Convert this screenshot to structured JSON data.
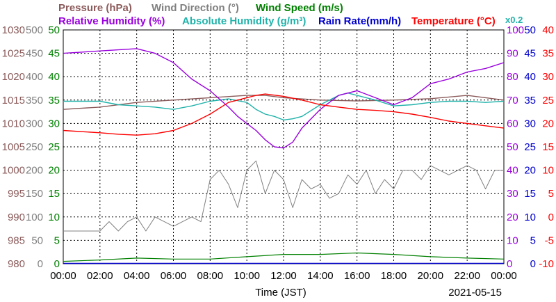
{
  "chart_data": {
    "type": "line",
    "date": "2021-05-15",
    "xlabel": "Time (JST)",
    "x_ticks": [
      "00:00",
      "02:00",
      "04:00",
      "06:00",
      "08:00",
      "10:00",
      "12:00",
      "14:00",
      "16:00",
      "18:00",
      "20:00",
      "22:00",
      "00:00"
    ],
    "grid": true,
    "legend": [
      {
        "label": "Pressure (hPa)",
        "color": "#8b5a5a"
      },
      {
        "label": "Wind Direction (°)",
        "color": "#808080"
      },
      {
        "label": "Wind Speed (m/s)",
        "color": "#008000"
      },
      {
        "label": "Relative Humidity (%)",
        "color": "#9900dd"
      },
      {
        "label": "Absolute Humidity (g/m³)",
        "color": "#20b2aa"
      },
      {
        "label": "Rain Rate(mm/h)",
        "color": "#0000cc"
      },
      {
        "label": "Temperature (°C)",
        "color": "#ff0000"
      }
    ],
    "rh_scale_note": "x0.2",
    "axes": {
      "pressure": {
        "color": "#8b5a5a",
        "min": 980,
        "max": 1030,
        "ticks": [
          "1030",
          "1025",
          "1020",
          "1015",
          "1010",
          "1005",
          "1000",
          "995",
          "990",
          "985",
          "980"
        ]
      },
      "wind_direction": {
        "color": "#808080",
        "min": 0,
        "max": 500,
        "ticks": [
          "500",
          "450",
          "400",
          "350",
          "300",
          "250",
          "200",
          "150",
          "100",
          "50",
          "0"
        ]
      },
      "wind_speed": {
        "color": "#008000",
        "min": 0,
        "max": 50,
        "ticks": [
          "50",
          "45",
          "40",
          "35",
          "30",
          "25",
          "20",
          "15",
          "10",
          "5",
          "0"
        ]
      },
      "humidity": {
        "color": "#9900dd",
        "min": 0,
        "max": 100,
        "ticks": [
          "100",
          "90",
          "80",
          "70",
          "60",
          "50",
          "40",
          "30",
          "20",
          "10",
          "0"
        ]
      },
      "rain_rate": {
        "color": "#0000cc",
        "min": 0,
        "max": 50,
        "ticks": [
          "50",
          "45",
          "40",
          "35",
          "30",
          "25",
          "20",
          "15",
          "10",
          "5",
          "0"
        ]
      },
      "temperature": {
        "color": "#ff0000",
        "min": -10,
        "max": 40,
        "ticks": [
          "40",
          "35",
          "30",
          "25",
          "20",
          "15",
          "10",
          "5",
          "0",
          "-5",
          "-10"
        ]
      }
    },
    "series": [
      {
        "name": "Pressure (hPa)",
        "axis": "pressure",
        "color": "#8b5a5a",
        "x": [
          0,
          2,
          4,
          6,
          8,
          10,
          11,
          12,
          14,
          16,
          18,
          20,
          22,
          24
        ],
        "y": [
          1013,
          1013.5,
          1014.5,
          1015,
          1015.5,
          1016,
          1016,
          1015.5,
          1015,
          1014.8,
          1015,
          1015.3,
          1016,
          1015
        ]
      },
      {
        "name": "Absolute Humidity (g/m³)",
        "axis": "humidity",
        "color": "#20b2aa",
        "x": [
          0,
          2,
          3,
          4,
          5,
          6,
          7,
          8,
          9,
          10,
          10.5,
          11,
          11.5,
          12,
          12.5,
          13,
          14,
          15,
          15.5,
          16,
          17,
          18,
          19,
          20,
          21,
          22,
          23,
          24
        ],
        "y": [
          69.5,
          69.5,
          68,
          67.5,
          67,
          66,
          67.5,
          69.5,
          70.5,
          69,
          66,
          64,
          63,
          61.5,
          62,
          63,
          68,
          72,
          73,
          72,
          70,
          67.5,
          68,
          69,
          69.5,
          69.5,
          69,
          69.5
        ]
      },
      {
        "name": "Relative Humidity (%)",
        "axis": "humidity",
        "color": "#9900dd",
        "x": [
          0,
          1,
          2,
          3,
          4,
          5,
          6,
          7,
          8,
          9,
          9.5,
          10,
          10.5,
          11,
          11.5,
          12,
          12.5,
          13,
          14,
          15,
          16,
          17,
          18,
          19,
          20,
          21,
          22,
          23,
          24
        ],
        "y": [
          90,
          90.5,
          91,
          91.5,
          92,
          90,
          86,
          79,
          74,
          67,
          63,
          60,
          57,
          53,
          50,
          49.5,
          52,
          58,
          66,
          72,
          74,
          71,
          68,
          71,
          77,
          79,
          82,
          83.5,
          86
        ]
      },
      {
        "name": "Temperature (°C)",
        "axis": "temperature",
        "color": "#ff0000",
        "x": [
          0,
          2,
          3,
          4,
          5,
          6,
          7,
          8,
          9,
          10,
          10.5,
          11,
          12,
          13,
          14,
          15,
          16,
          17,
          18,
          19,
          20,
          21,
          22,
          23,
          24
        ],
        "y": [
          18.5,
          18,
          17.7,
          17.5,
          17.8,
          18.5,
          20,
          22,
          24.5,
          25.5,
          26,
          26.3,
          25.8,
          25,
          24,
          23.5,
          23,
          22.8,
          22.5,
          22,
          21.3,
          20.5,
          20,
          19.5,
          19
        ]
      },
      {
        "name": "Wind Direction (°)",
        "axis": "wind_direction",
        "color": "#808080",
        "x": [
          0,
          1,
          2,
          2.5,
          3,
          3.5,
          4,
          4.5,
          5,
          6,
          7,
          7.5,
          8,
          8.5,
          9,
          9.5,
          10,
          10.5,
          11,
          11.5,
          12,
          12.5,
          13,
          13.5,
          14,
          14.5,
          15,
          15.5,
          16,
          16.5,
          17,
          17.5,
          18,
          18.5,
          19,
          19.5,
          20,
          20.5,
          21,
          21.5,
          22,
          22.5,
          23,
          23.5,
          24
        ],
        "y": [
          70,
          70,
          70,
          90,
          70,
          90,
          100,
          70,
          100,
          80,
          100,
          90,
          180,
          200,
          170,
          120,
          200,
          220,
          150,
          200,
          180,
          120,
          180,
          160,
          170,
          140,
          150,
          190,
          170,
          200,
          150,
          180,
          160,
          200,
          200,
          180,
          210,
          200,
          190,
          200,
          210,
          200,
          160,
          200,
          200
        ]
      },
      {
        "name": "Wind Speed (m/s)",
        "axis": "wind_speed",
        "color": "#008000",
        "x": [
          0,
          2,
          4,
          6,
          8,
          10,
          12,
          14,
          16,
          18,
          20,
          22,
          24
        ],
        "y": [
          0.5,
          0.8,
          1.2,
          1,
          1,
          1.5,
          2,
          2,
          2.3,
          2,
          1.5,
          1.2,
          1
        ]
      }
    ]
  }
}
